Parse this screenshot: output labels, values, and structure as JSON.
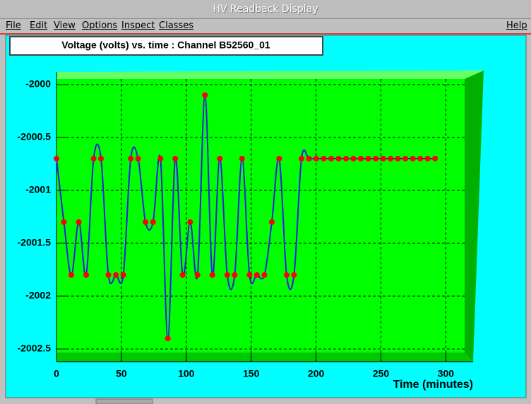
{
  "window": {
    "title": "HV Readback Display",
    "menu": [
      "File",
      "Edit",
      "View",
      "Options",
      "Inspect",
      "Classes"
    ],
    "help": "Help"
  },
  "chart_data": {
    "type": "line",
    "title": "Voltage (volts) vs. time  : Channel B52560_01",
    "x_label": "Time (minutes)",
    "x": [
      0,
      5.7,
      11.4,
      17.2,
      22.9,
      28.6,
      34.3,
      40.0,
      45.8,
      51.5,
      57.2,
      62.9,
      68.6,
      74.4,
      80.1,
      85.8,
      91.5,
      97.2,
      103.0,
      108.7,
      114.4,
      120.1,
      125.8,
      131.6,
      137.3,
      143.0,
      148.7,
      154.4,
      160.2,
      165.9,
      171.6,
      177.3,
      183.0,
      188.8,
      194.5,
      200.2,
      205.9,
      211.6,
      217.4,
      223.1,
      228.8,
      234.5,
      240.2,
      246.0,
      251.7,
      257.4,
      263.1,
      268.8,
      274.6,
      280.3,
      286.0,
      291.7
    ],
    "series": [
      {
        "color": "#2020e0",
        "marker_color": "#ff0000",
        "values": [
          -2000.7,
          -2001.3,
          -2001.8,
          -2001.3,
          -2001.8,
          -2000.7,
          -2000.7,
          -2001.8,
          -2001.8,
          -2001.8,
          -2000.7,
          -2000.7,
          -2001.3,
          -2001.3,
          -2000.7,
          -2002.4,
          -2000.7,
          -2001.8,
          -2001.3,
          -2001.8,
          -2000.1,
          -2001.8,
          -2000.7,
          -2001.8,
          -2001.8,
          -2000.7,
          -2001.8,
          -2001.8,
          -2001.8,
          -2001.3,
          -2000.7,
          -2001.8,
          -2001.8,
          -2000.7,
          -2000.7,
          -2000.7,
          -2000.7,
          -2000.7,
          -2000.7,
          -2000.7,
          -2000.7,
          -2000.7,
          -2000.7,
          -2000.7,
          -2000.7,
          -2000.7,
          -2000.7,
          -2000.7,
          -2000.7,
          -2000.7,
          -2000.7,
          -2000.7
        ]
      }
    ],
    "xlim": [
      0,
      321
    ],
    "xticks": [
      0,
      50,
      100,
      150,
      200,
      250,
      300
    ],
    "ylim": [
      -2002.62,
      -1999.88
    ],
    "yticks": [
      -2000,
      -2000.5,
      -2001,
      -2001.5,
      -2002,
      -2002.5
    ],
    "grid": true
  }
}
